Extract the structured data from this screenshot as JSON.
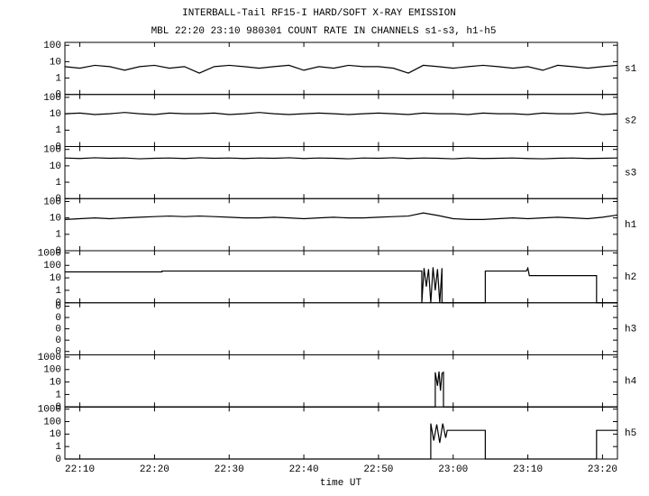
{
  "title": "INTERBALL-Tail RF15-I HARD/SOFT X-RAY EMISSION",
  "subtitle": "MBL 22:20 23:10 980301  COUNT RATE IN CHANNELS s1-s3, h1-h5",
  "xlabel": "time UT",
  "xlim": [
    1328,
    1402
  ],
  "xticks": [
    {
      "value": 1330,
      "label": "22:10"
    },
    {
      "value": 1340,
      "label": "22:20"
    },
    {
      "value": 1350,
      "label": "22:30"
    },
    {
      "value": 1360,
      "label": "22:40"
    },
    {
      "value": 1370,
      "label": "22:50"
    },
    {
      "value": 1380,
      "label": "23:00"
    },
    {
      "value": 1390,
      "label": "23:10"
    },
    {
      "value": 1400,
      "label": "23:20"
    }
  ],
  "chart_data": [
    {
      "type": "line",
      "label": "s1",
      "log_scale": true,
      "ylim": [
        0,
        150
      ],
      "yticks": [
        0,
        1,
        10,
        100
      ],
      "x": [
        1328,
        1330,
        1332,
        1334,
        1336,
        1338,
        1340,
        1342,
        1344,
        1346,
        1348,
        1350,
        1352,
        1354,
        1356,
        1358,
        1360,
        1362,
        1364,
        1366,
        1368,
        1370,
        1372,
        1374,
        1376,
        1378,
        1380,
        1382,
        1384,
        1386,
        1388,
        1390,
        1392,
        1394,
        1396,
        1398,
        1400,
        1402
      ],
      "series": [
        {
          "color": "#000000",
          "values": [
            5,
            4,
            6,
            5,
            3,
            5,
            6,
            4,
            5,
            2,
            5,
            6,
            5,
            4,
            5,
            6,
            3,
            5,
            4,
            6,
            5,
            5,
            4,
            2,
            6,
            5,
            4,
            5,
            6,
            5,
            4,
            5,
            3,
            6,
            5,
            4,
            5,
            6
          ]
        }
      ]
    },
    {
      "type": "line",
      "label": "s2",
      "log_scale": true,
      "ylim": [
        0,
        150
      ],
      "yticks": [
        0,
        1,
        10,
        100
      ],
      "x": [
        1328,
        1330,
        1332,
        1334,
        1336,
        1338,
        1340,
        1342,
        1344,
        1346,
        1348,
        1350,
        1352,
        1354,
        1356,
        1358,
        1360,
        1362,
        1364,
        1366,
        1368,
        1370,
        1372,
        1374,
        1376,
        1378,
        1380,
        1382,
        1384,
        1386,
        1388,
        1390,
        1392,
        1394,
        1396,
        1398,
        1400,
        1402
      ],
      "series": [
        {
          "color": "#000000",
          "values": [
            10,
            11,
            9,
            10,
            12,
            10,
            9,
            11,
            10,
            10,
            11,
            9,
            10,
            12,
            10,
            9,
            10,
            11,
            10,
            9,
            10,
            11,
            10,
            9,
            11,
            10,
            10,
            9,
            11,
            10,
            10,
            9,
            11,
            10,
            10,
            12,
            9,
            10
          ]
        }
      ]
    },
    {
      "type": "line",
      "label": "s3",
      "log_scale": true,
      "ylim": [
        0,
        150
      ],
      "yticks": [
        0,
        1,
        10,
        100
      ],
      "x": [
        1328,
        1330,
        1332,
        1334,
        1336,
        1338,
        1340,
        1342,
        1344,
        1346,
        1348,
        1350,
        1352,
        1354,
        1356,
        1358,
        1360,
        1362,
        1364,
        1366,
        1368,
        1370,
        1372,
        1374,
        1376,
        1378,
        1380,
        1382,
        1384,
        1386,
        1388,
        1390,
        1392,
        1394,
        1396,
        1398,
        1400,
        1402
      ],
      "series": [
        {
          "color": "#000000",
          "values": [
            30,
            28,
            31,
            29,
            30,
            27,
            29,
            30,
            28,
            31,
            29,
            30,
            28,
            30,
            29,
            31,
            28,
            30,
            29,
            27,
            30,
            29,
            31,
            28,
            30,
            29,
            27,
            30,
            28,
            29,
            30,
            28,
            27,
            29,
            30,
            28,
            29,
            30
          ]
        }
      ]
    },
    {
      "type": "line",
      "label": "h1",
      "log_scale": true,
      "ylim": [
        0,
        150
      ],
      "yticks": [
        0,
        1,
        10,
        100
      ],
      "x": [
        1328,
        1330,
        1332,
        1334,
        1336,
        1338,
        1340,
        1342,
        1344,
        1346,
        1348,
        1350,
        1352,
        1354,
        1356,
        1358,
        1360,
        1362,
        1364,
        1366,
        1368,
        1370,
        1372,
        1374,
        1376,
        1378,
        1380,
        1382,
        1384,
        1386,
        1388,
        1390,
        1392,
        1394,
        1396,
        1398,
        1400,
        1402
      ],
      "series": [
        {
          "color": "#000000",
          "values": [
            8,
            9,
            10,
            9,
            10,
            11,
            12,
            13,
            12,
            13,
            12,
            11,
            10,
            10,
            11,
            10,
            9,
            10,
            11,
            10,
            10,
            11,
            12,
            13,
            20,
            14,
            9,
            8,
            8,
            9,
            10,
            9,
            10,
            11,
            10,
            9,
            11,
            15
          ]
        }
      ]
    },
    {
      "type": "line",
      "label": "h2",
      "log_scale": true,
      "ylim": [
        0,
        1500
      ],
      "yticks": [
        0,
        1,
        10,
        100,
        1000
      ],
      "x": [
        1328,
        1341,
        1341,
        1375.8,
        1375.8,
        1376.1,
        1376.4,
        1376.7,
        1377,
        1377.3,
        1377.6,
        1377.9,
        1378.2,
        1378.5,
        1378.5,
        1384.3,
        1384.3,
        1389.8,
        1390,
        1390.2,
        1399.2,
        1399.2,
        1402
      ],
      "series": [
        {
          "color": "#000000",
          "values": [
            30,
            30,
            35,
            35,
            0,
            60,
            2,
            50,
            0,
            70,
            1,
            50,
            0,
            60,
            0,
            0,
            35,
            35,
            60,
            15,
            15,
            0,
            0
          ]
        }
      ]
    },
    {
      "type": "line",
      "label": "h3",
      "log_scale": true,
      "ylim": [
        5e-06,
        0.2
      ],
      "yticks": [
        {
          "value": 1e-05,
          "label": "0"
        },
        {
          "value": 0.0001,
          "label": "0"
        },
        {
          "value": 0.001,
          "label": "0"
        },
        {
          "value": 0.01,
          "label": "0"
        },
        {
          "value": 0.1,
          "label": "0"
        }
      ]
    },
    {
      "type": "line",
      "label": "h4",
      "log_scale": true,
      "ylim": [
        0,
        1500
      ],
      "yticks": [
        0,
        1,
        10,
        100,
        1000
      ],
      "x": [
        1328,
        1377.6,
        1377.6,
        1377.9,
        1378.1,
        1378.3,
        1378.5,
        1378.7,
        1378.7,
        1402
      ],
      "series": [
        {
          "color": "#000000",
          "values": [
            0,
            0,
            60,
            5,
            70,
            2,
            50,
            60,
            0,
            0
          ]
        }
      ]
    },
    {
      "type": "line",
      "label": "h5",
      "log_scale": true,
      "ylim": [
        0,
        1500
      ],
      "yticks": [
        0,
        1,
        10,
        100,
        1000
      ],
      "x": [
        1328,
        1377,
        1377,
        1377.4,
        1377.8,
        1378.2,
        1378.6,
        1379,
        1379.2,
        1384.3,
        1384.3,
        1399.2,
        1399.2,
        1402
      ],
      "series": [
        {
          "color": "#000000",
          "values": [
            0,
            0,
            70,
            3,
            60,
            2,
            70,
            5,
            20,
            20,
            0,
            0,
            20,
            20
          ]
        }
      ]
    }
  ]
}
